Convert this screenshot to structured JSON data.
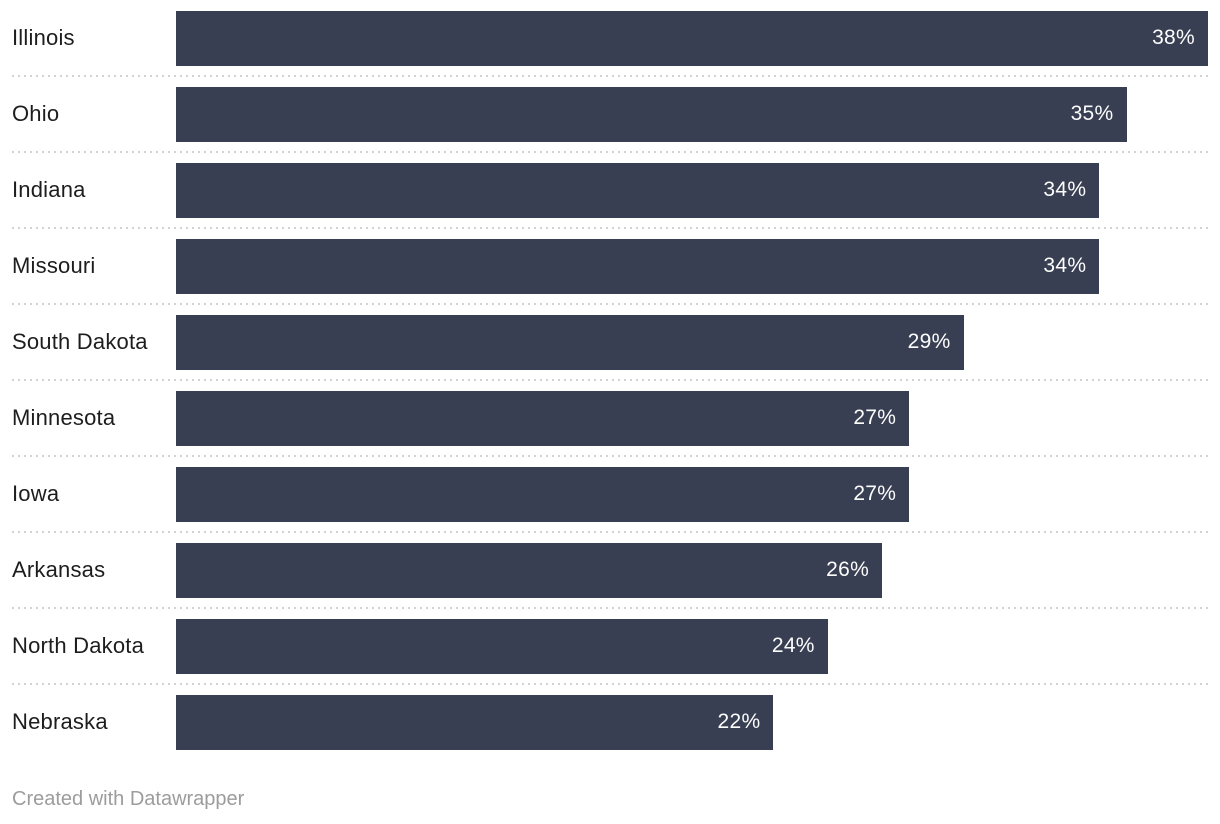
{
  "chart_data": {
    "type": "bar",
    "orientation": "horizontal",
    "categories": [
      "Illinois",
      "Ohio",
      "Indiana",
      "Missouri",
      "South Dakota",
      "Minnesota",
      "Iowa",
      "Arkansas",
      "North Dakota",
      "Nebraska"
    ],
    "values": [
      38,
      35,
      34,
      34,
      29,
      27,
      27,
      26,
      24,
      22
    ],
    "value_labels": [
      "38%",
      "35%",
      "34%",
      "34%",
      "29%",
      "27%",
      "27%",
      "26%",
      "24%",
      "22%"
    ],
    "value_suffix": "%",
    "xlim": [
      0,
      38
    ],
    "title": "",
    "xlabel": "",
    "ylabel": "",
    "grid": "dotted-row-separators",
    "legend_position": "none",
    "colors": {
      "bar_fill": "#393f52",
      "value_text": "#fdfdfd",
      "category_text": "#1d1d1d",
      "separator": "#d2d2d2",
      "background": "#ffffff"
    }
  },
  "footer": {
    "attribution": "Created with Datawrapper"
  }
}
